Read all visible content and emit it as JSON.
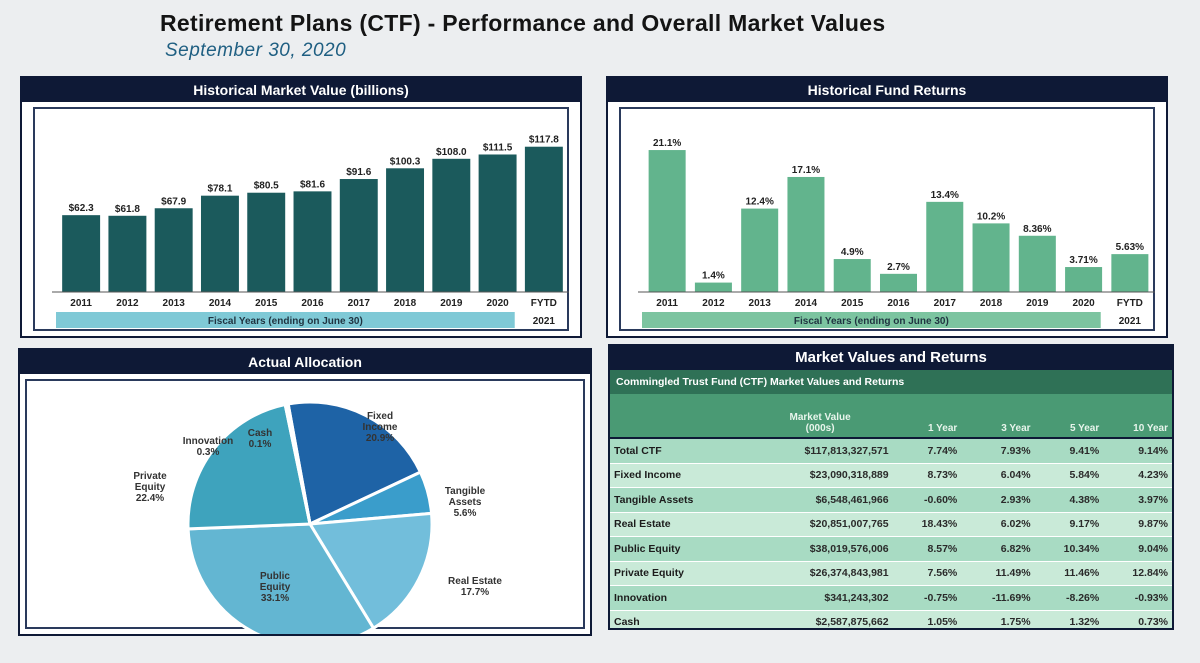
{
  "header": {
    "title": "Retirement Plans (CTF) - Performance and Overall Market Values",
    "subtitle": "September 30, 2020"
  },
  "colors": {
    "navy": "#0e1936",
    "market_bar": "#1b5a5c",
    "return_bar": "#62b48d",
    "axis_band": "#7fc9d6",
    "axis_band_green": "#7cc4a0"
  },
  "panels": {
    "market_value": {
      "title": "Historical Market Value (billions)"
    },
    "fund_returns": {
      "title": "Historical Fund Returns"
    },
    "allocation": {
      "title": "Actual Allocation"
    },
    "table": {
      "title": "Market Values and Returns"
    }
  },
  "chart_data": [
    {
      "type": "bar",
      "title": "Historical Market Value (billions)",
      "categories": [
        "2011",
        "2012",
        "2013",
        "2014",
        "2015",
        "2016",
        "2017",
        "2018",
        "2019",
        "2020",
        "FYTD 2021"
      ],
      "tick_labels": [
        "2011",
        "2012",
        "2013",
        "2014",
        "2015",
        "2016",
        "2017",
        "2018",
        "2019",
        "2020",
        "FYTD"
      ],
      "tick_sub": "2021",
      "values": [
        62.3,
        61.8,
        67.9,
        78.1,
        80.5,
        81.6,
        91.6,
        100.3,
        108.0,
        111.5,
        117.8
      ],
      "data_labels": [
        "$62.3",
        "$61.8",
        "$67.9",
        "$78.1",
        "$80.5",
        "$81.6",
        "$91.6",
        "$100.3",
        "$108.0",
        "$111.5",
        "$117.8"
      ],
      "xlabel": "Fiscal Years (ending on June 30)",
      "ylabel": "",
      "ylim": [
        0,
        120
      ]
    },
    {
      "type": "bar",
      "title": "Historical Fund Returns",
      "categories": [
        "2011",
        "2012",
        "2013",
        "2014",
        "2015",
        "2016",
        "2017",
        "2018",
        "2019",
        "2020",
        "FYTD 2021"
      ],
      "tick_labels": [
        "2011",
        "2012",
        "2013",
        "2014",
        "2015",
        "2016",
        "2017",
        "2018",
        "2019",
        "2020",
        "FYTD"
      ],
      "tick_sub": "2021",
      "values": [
        21.1,
        1.4,
        12.4,
        17.1,
        4.9,
        2.7,
        13.4,
        10.2,
        8.36,
        3.71,
        5.63
      ],
      "data_labels": [
        "21.1%",
        "1.4%",
        "12.4%",
        "17.1%",
        "4.9%",
        "2.7%",
        "13.4%",
        "10.2%",
        "8.36%",
        "3.71%",
        "5.63%"
      ],
      "xlabel": "Fiscal Years (ending on June 30)",
      "ylabel": "",
      "ylim": [
        0,
        22
      ]
    },
    {
      "type": "pie",
      "title": "Actual Allocation",
      "slices": [
        {
          "name": "Fixed Income",
          "value": 20.9,
          "label": "Fixed\nIncome\n20.9%",
          "color": "#1e63a6"
        },
        {
          "name": "Tangible Assets",
          "value": 5.6,
          "label": "Tangible\nAssets\n5.6%",
          "color": "#3a9dcb"
        },
        {
          "name": "Real Estate",
          "value": 17.7,
          "label": "Real Estate\n17.7%",
          "color": "#72bedb"
        },
        {
          "name": "Public Equity",
          "value": 33.1,
          "label": "Public\nEquity\n33.1%",
          "color": "#63b6d2"
        },
        {
          "name": "Private Equity",
          "value": 22.4,
          "label": "Private\nEquity\n22.4%",
          "color": "#3ea3bd"
        },
        {
          "name": "Innovation",
          "value": 0.3,
          "label": "Innovation\n0.3%",
          "color": "#2a6aa0"
        },
        {
          "name": "Cash",
          "value": 0.1,
          "label": "Cash\n0.1%",
          "color": "#2a6aa0"
        }
      ]
    }
  ],
  "returns_table": {
    "subtitle": "Commingled Trust Fund (CTF) Market Values and Returns",
    "columns": [
      "",
      "Market Value\n(000s)",
      "1 Year",
      "3 Year",
      "5 Year",
      "10 Year"
    ],
    "rows": [
      [
        "Total CTF",
        "$117,813,327,571",
        "7.74%",
        "7.93%",
        "9.41%",
        "9.14%"
      ],
      [
        "Fixed Income",
        "$23,090,318,889",
        "8.73%",
        "6.04%",
        "5.84%",
        "4.23%"
      ],
      [
        "Tangible Assets",
        "$6,548,461,966",
        "-0.60%",
        "2.93%",
        "4.38%",
        "3.97%"
      ],
      [
        "Real Estate",
        "$20,851,007,765",
        "18.43%",
        "6.02%",
        "9.17%",
        "9.87%"
      ],
      [
        "Public Equity",
        "$38,019,576,006",
        "8.57%",
        "6.82%",
        "10.34%",
        "9.04%"
      ],
      [
        "Private Equity",
        "$26,374,843,981",
        "7.56%",
        "11.49%",
        "11.46%",
        "12.84%"
      ],
      [
        "Innovation",
        "$341,243,302",
        "-0.75%",
        "-11.69%",
        "-8.26%",
        "-0.93%"
      ],
      [
        "Cash",
        "$2,587,875,662",
        "1.05%",
        "1.75%",
        "1.32%",
        "0.73%"
      ]
    ]
  }
}
